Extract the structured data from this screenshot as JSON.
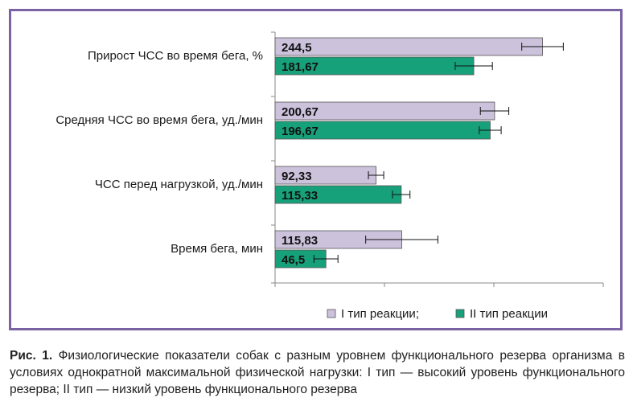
{
  "chart_data": {
    "type": "bar",
    "orientation": "horizontal",
    "categories": [
      "Прирост ЧСС во время бега, %",
      "Средняя ЧСС во время бега, уд./мин",
      "ЧСС перед нагрузкой, уд./мин",
      "Время бега, мин"
    ],
    "series": [
      {
        "name": "I тип реакции;",
        "color": "#ccc2dc",
        "values": [
          244.5,
          200.67,
          92.33,
          115.83
        ],
        "labels": [
          "244,5",
          "200,67",
          "92,33",
          "115,83"
        ],
        "errors": [
          19,
          13,
          7,
          33
        ]
      },
      {
        "name": "II тип реакции",
        "color": "#17a17a",
        "values": [
          181.67,
          196.67,
          115.33,
          46.5
        ],
        "labels": [
          "181,67",
          "196,67",
          "115,33",
          "46,5"
        ],
        "errors": [
          17,
          10,
          8,
          11
        ]
      }
    ],
    "xlim": [
      0,
      300
    ],
    "grid": false,
    "legend_position": "bottom"
  },
  "caption": {
    "prefix": "Рис. 1.",
    "text": " Физиологические показатели собак с разным уровнем функционального резерва организма в условиях однократной максимальной физической нагрузки: I тип — высокий уровень функционального резерва; II тип — низкий уровень функционального резерва"
  }
}
